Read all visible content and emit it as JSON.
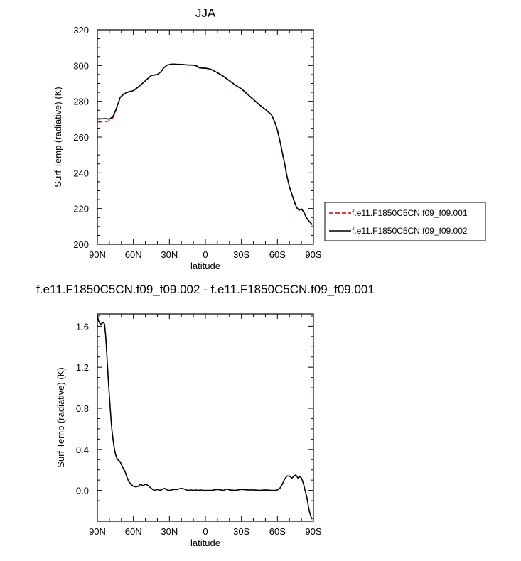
{
  "chart_data": [
    {
      "type": "line",
      "title": "JJA",
      "xlabel": "latitude",
      "ylabel": "Surf Temp (radiative) (K)",
      "xlim": [
        -90,
        90
      ],
      "ylim": [
        200,
        320
      ],
      "x_direction": "north-to-south",
      "x_ticks": [
        "90N",
        "60N",
        "30N",
        "0",
        "30S",
        "60S",
        "90S"
      ],
      "y_ticks": [
        "200",
        "220",
        "240",
        "260",
        "280",
        "300",
        "320"
      ],
      "legend": {
        "position": "outside-right"
      },
      "series": [
        {
          "name": "f.e11.F1850C5CN.f09_f09.001",
          "color": "#cc0000",
          "dash": "dashed",
          "x": [
            90,
            86,
            83,
            80,
            77,
            75,
            73,
            71,
            68,
            65,
            60,
            55,
            50,
            45,
            40,
            37,
            35,
            32,
            28,
            25,
            20,
            15,
            10,
            7,
            5,
            2,
            0,
            -2,
            -5,
            -10,
            -15,
            -20,
            -25,
            -30,
            -35,
            -40,
            -45,
            -50,
            -55,
            -58,
            -60,
            -62,
            -64,
            -66,
            -68,
            -70,
            -72,
            -74,
            -76,
            -78,
            -79,
            -80,
            -82,
            -84,
            -85,
            -87,
            -89
          ],
          "y": [
            268.5,
            268.5,
            268.8,
            269,
            271,
            274,
            278,
            282,
            284,
            285,
            286,
            288.5,
            291.5,
            294.5,
            295,
            296.5,
            298.5,
            300.2,
            300.8,
            300.7,
            300.6,
            300.3,
            300.2,
            299.7,
            298.7,
            298.5,
            298.5,
            298.3,
            297.8,
            296,
            294,
            291.5,
            289,
            287,
            284,
            281,
            278,
            275.5,
            272.5,
            268,
            264,
            258,
            251.5,
            245,
            238,
            232,
            228,
            224,
            220.5,
            219,
            219.2,
            219.8,
            218,
            215,
            214,
            212.5,
            211
          ]
        },
        {
          "name": "f.e11.F1850C5CN.f09_f09.002",
          "color": "#000000",
          "dash": "solid",
          "x": [
            90,
            86,
            83,
            80,
            77,
            75,
            73,
            71,
            68,
            65,
            60,
            55,
            50,
            45,
            40,
            37,
            35,
            32,
            28,
            25,
            20,
            15,
            10,
            7,
            5,
            2,
            0,
            -2,
            -5,
            -10,
            -15,
            -20,
            -25,
            -30,
            -35,
            -40,
            -45,
            -50,
            -55,
            -58,
            -60,
            -62,
            -64,
            -66,
            -68,
            -70,
            -72,
            -74,
            -76,
            -78,
            -79,
            -80,
            -82,
            -84,
            -85,
            -87,
            -89
          ],
          "y": [
            270.2,
            270.2,
            270.3,
            270,
            271.5,
            274.5,
            278.2,
            282.2,
            284.1,
            285.1,
            286,
            288.5,
            291.5,
            294.5,
            295,
            296.5,
            298.5,
            300.2,
            300.8,
            300.7,
            300.6,
            300.3,
            300.2,
            299.7,
            298.7,
            298.5,
            298.5,
            298.3,
            297.8,
            296,
            294,
            291.5,
            289,
            287,
            284,
            281,
            278,
            275.5,
            272.5,
            268,
            264,
            258,
            251.5,
            245,
            238,
            232,
            228,
            224,
            220.6,
            219.1,
            219.3,
            219.8,
            218,
            215,
            214,
            212.5,
            211
          ]
        }
      ]
    },
    {
      "type": "line",
      "title": "f.e11.F1850C5CN.f09_f09.002 - f.e11.F1850C5CN.f09_f09.001",
      "xlabel": "latitude",
      "ylabel": "Surf Temp (radiative) (K)",
      "xlim": [
        -90,
        90
      ],
      "ylim": [
        -0.3,
        1.72
      ],
      "x_direction": "north-to-south",
      "x_ticks": [
        "90N",
        "60N",
        "30N",
        "0",
        "30S",
        "60S",
        "90S"
      ],
      "y_ticks": [
        "0.0",
        "0.4",
        "0.8",
        "1.2",
        "1.6"
      ],
      "series": [
        {
          "color": "#000000",
          "dash": "solid",
          "x": [
            90,
            89,
            88,
            87,
            86,
            85,
            84,
            83,
            82,
            81,
            80,
            79,
            78,
            77,
            76,
            75,
            74,
            73,
            72,
            71,
            70,
            69,
            68,
            67,
            66,
            65,
            64,
            62,
            60,
            58,
            56,
            54,
            52,
            50,
            48,
            46,
            44,
            42,
            40,
            38,
            36,
            34,
            32,
            30,
            28,
            26,
            24,
            22,
            20,
            18,
            16,
            14,
            12,
            10,
            8,
            6,
            4,
            2,
            0,
            -5,
            -10,
            -15,
            -18,
            -20,
            -25,
            -30,
            -35,
            -40,
            -45,
            -50,
            -55,
            -58,
            -60,
            -62,
            -64,
            -66,
            -68,
            -70,
            -72,
            -74,
            -75,
            -76,
            -77,
            -78,
            -79,
            -80,
            -81,
            -82,
            -83,
            -84,
            -85,
            -86,
            -87,
            -88,
            -89
          ],
          "y": [
            1.7,
            1.65,
            1.63,
            1.62,
            1.63,
            1.64,
            1.62,
            1.5,
            1.3,
            1.1,
            0.92,
            0.75,
            0.6,
            0.5,
            0.42,
            0.36,
            0.32,
            0.3,
            0.29,
            0.28,
            0.25,
            0.23,
            0.2,
            0.19,
            0.15,
            0.12,
            0.09,
            0.06,
            0.04,
            0.035,
            0.04,
            0.06,
            0.045,
            0.06,
            0.05,
            0.03,
            0.01,
            0.0,
            0.01,
            0.0,
            0.01,
            0.02,
            0.005,
            0.0,
            0.005,
            0.01,
            0.008,
            0.015,
            0.02,
            0.015,
            0.005,
            0.0,
            0.005,
            0.0,
            0.005,
            0.0,
            0.005,
            0.0,
            0.0,
            0.0,
            0.01,
            0.0,
            0.015,
            0.005,
            0.0,
            0.01,
            0.005,
            0.005,
            0.0,
            0.005,
            0.0,
            0.0,
            0.005,
            0.02,
            0.06,
            0.11,
            0.14,
            0.14,
            0.12,
            0.14,
            0.15,
            0.14,
            0.12,
            0.13,
            0.13,
            0.12,
            0.09,
            0.05,
            0.0,
            -0.04,
            -0.1,
            -0.17,
            -0.22,
            -0.26,
            -0.28
          ]
        }
      ]
    }
  ]
}
